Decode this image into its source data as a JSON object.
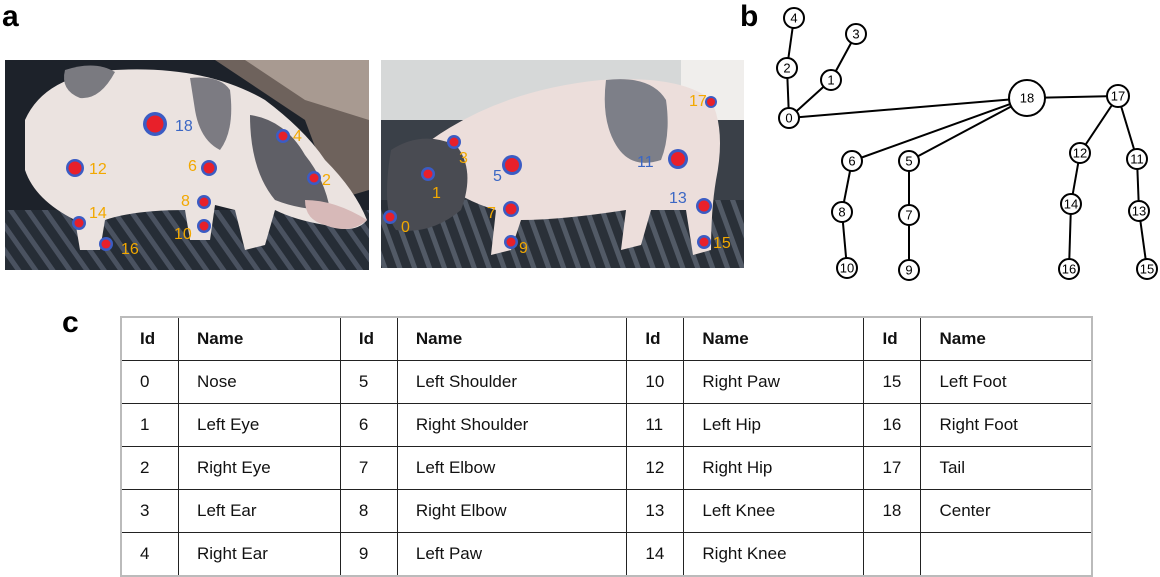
{
  "panels": {
    "a": "a",
    "b": "b",
    "c": "c"
  },
  "photo_left": {
    "keypoints": [
      {
        "id": "18",
        "color": "#3b67c4"
      },
      {
        "id": "4",
        "color": "#f2a800"
      },
      {
        "id": "12",
        "color": "#f2a800"
      },
      {
        "id": "6",
        "color": "#f2a800"
      },
      {
        "id": "2",
        "color": "#f2a800"
      },
      {
        "id": "8",
        "color": "#f2a800"
      },
      {
        "id": "14",
        "color": "#f2a800"
      },
      {
        "id": "10",
        "color": "#f2a800"
      },
      {
        "id": "16",
        "color": "#f2a800"
      }
    ]
  },
  "photo_right": {
    "keypoints": [
      {
        "id": "17",
        "color": "#f2a800"
      },
      {
        "id": "3",
        "color": "#f2a800"
      },
      {
        "id": "5",
        "color": "#3b67c4"
      },
      {
        "id": "11",
        "color": "#3b67c4"
      },
      {
        "id": "1",
        "color": "#f2a800"
      },
      {
        "id": "13",
        "color": "#3b67c4"
      },
      {
        "id": "7",
        "color": "#f2a800"
      },
      {
        "id": "0",
        "color": "#f2a800"
      },
      {
        "id": "9",
        "color": "#f2a800"
      },
      {
        "id": "15",
        "color": "#f2a800"
      }
    ]
  },
  "skeleton": {
    "nodes": [
      "0",
      "1",
      "2",
      "3",
      "4",
      "5",
      "6",
      "7",
      "8",
      "9",
      "10",
      "11",
      "12",
      "13",
      "14",
      "15",
      "16",
      "17",
      "18"
    ],
    "edges": [
      [
        "4",
        "2"
      ],
      [
        "2",
        "0"
      ],
      [
        "3",
        "1"
      ],
      [
        "1",
        "0"
      ],
      [
        "0",
        "18"
      ],
      [
        "18",
        "17"
      ],
      [
        "18",
        "6"
      ],
      [
        "18",
        "5"
      ],
      [
        "6",
        "8"
      ],
      [
        "8",
        "10"
      ],
      [
        "5",
        "7"
      ],
      [
        "7",
        "9"
      ],
      [
        "17",
        "12"
      ],
      [
        "17",
        "11"
      ],
      [
        "12",
        "14"
      ],
      [
        "14",
        "16"
      ],
      [
        "11",
        "13"
      ],
      [
        "13",
        "15"
      ]
    ]
  },
  "table": {
    "headers": [
      "Id",
      "Name",
      "Id",
      "Name",
      "Id",
      "Name",
      "Id",
      "Name"
    ],
    "rows": [
      [
        "0",
        "Nose",
        "5",
        "Left Shoulder",
        "10",
        "Right Paw",
        "15",
        "Left Foot"
      ],
      [
        "1",
        "Left Eye",
        "6",
        "Right Shoulder",
        "11",
        "Left Hip",
        "16",
        "Right Foot"
      ],
      [
        "2",
        "Right Eye",
        "7",
        "Left Elbow",
        "12",
        "Right Hip",
        "17",
        "Tail"
      ],
      [
        "3",
        "Left Ear",
        "8",
        "Right Elbow",
        "13",
        "Left Knee",
        "18",
        "Center"
      ],
      [
        "4",
        "Right Ear",
        "9",
        "Left Paw",
        "14",
        "Right Knee",
        "",
        ""
      ]
    ]
  },
  "colors": {
    "dot_fill": "#e8202a",
    "dot_ring": "#3b5cc4",
    "label_orange": "#f2a800",
    "label_blue": "#3b67c4"
  }
}
